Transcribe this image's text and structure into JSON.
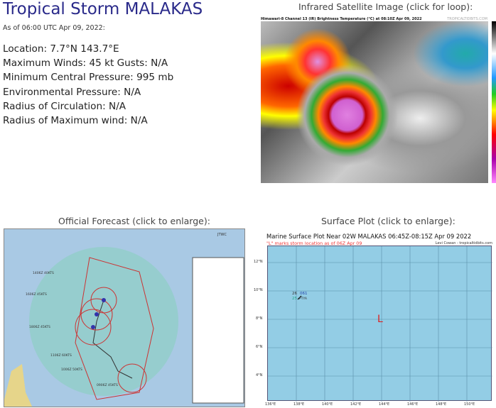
{
  "storm": {
    "title": "Tropical Storm MALAKAS",
    "as_of": "As of 06:00 UTC Apr 09, 2022:",
    "location": "Location: 7.7°N 143.7°E",
    "winds": "Maximum Winds: 45 kt  Gusts: N/A",
    "pressure": "Minimum Central Pressure: 995 mb",
    "env_pressure": "Environmental Pressure: N/A",
    "radius_circ": "Radius of Circulation: N/A",
    "radius_maxwind": "Radius of Maximum wind: N/A"
  },
  "satellite": {
    "caption": "Infrared Satellite Image (click for loop):",
    "header": "Himawari-8 Channel 13 (IR) Brightness Temperature (°C) at 08:10Z Apr 09, 2022",
    "credit": "TROPICALTIDBITS.COM"
  },
  "forecast": {
    "caption": "Official Forecast (click to enlarge):",
    "labels": [
      "1406Z 40KTS",
      "1606Z 45KTS",
      "1806Z 45KTS",
      "1106Z 60KTS",
      "1006Z 50KTS",
      "0906Z 45KTS"
    ],
    "agency": "JTWC"
  },
  "surface": {
    "caption": "Surface Plot (click to enlarge):",
    "header": "Marine Surface Plot Near 02W MALAKAS 06:45Z-08:15Z Apr 09 2022",
    "subheader": "\"L\" marks storm location as of 06Z Apr 09",
    "credit": "Levi Cowan - tropicaltidbits.com",
    "storm_marker": "L",
    "lat_ticks": [
      "12°N",
      "10°N",
      "8°N",
      "6°N",
      "4°N"
    ],
    "lon_ticks": [
      "136°E",
      "138°E",
      "140°E",
      "142°E",
      "144°E",
      "146°E",
      "148°E",
      "150°E"
    ],
    "obs": {
      "temp": "26",
      "pressure": "061",
      "dew": "25",
      "id": "PTYA"
    }
  }
}
